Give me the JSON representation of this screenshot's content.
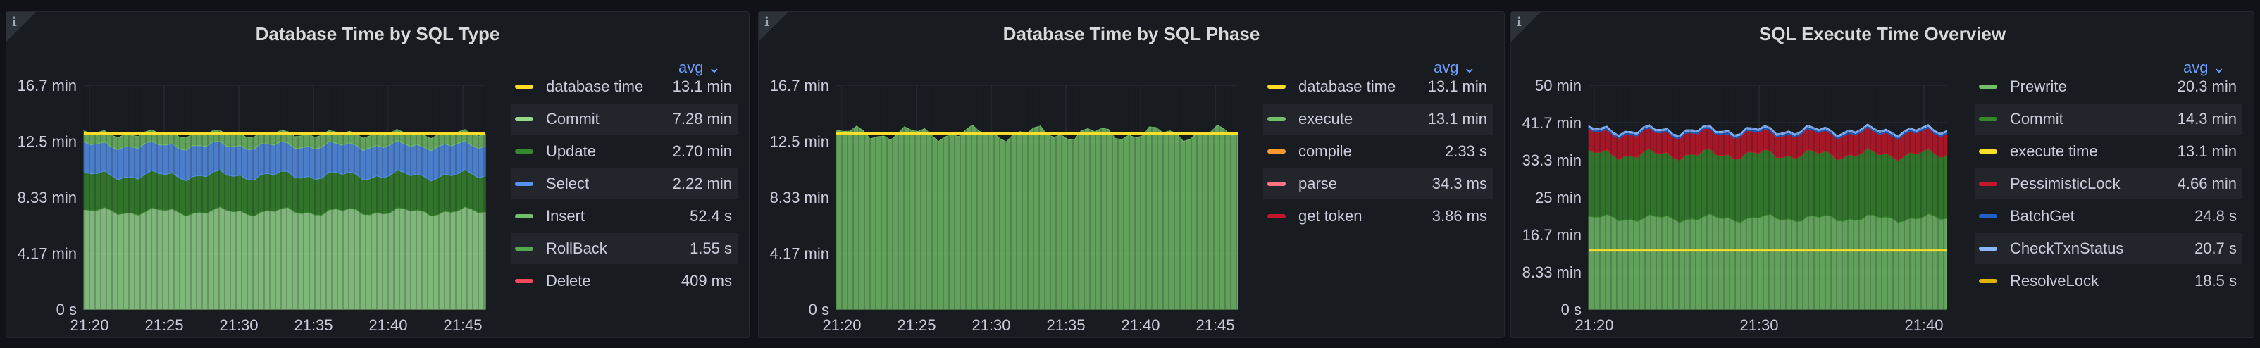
{
  "panels": [
    {
      "title": "Database Time by SQL Type",
      "legend_calc": "avg",
      "legend": [
        {
          "name": "database time",
          "value": "13.1 min",
          "color": "#fade2a"
        },
        {
          "name": "Commit",
          "value": "7.28 min",
          "color": "#96d98d"
        },
        {
          "name": "Update",
          "value": "2.70 min",
          "color": "#37872d"
        },
        {
          "name": "Select",
          "value": "2.22 min",
          "color": "#5794f2"
        },
        {
          "name": "Insert",
          "value": "52.4 s",
          "color": "#73bf69"
        },
        {
          "name": "RollBack",
          "value": "1.55 s",
          "color": "#56a64b"
        },
        {
          "name": "Delete",
          "value": "409 ms",
          "color": "#f2495c"
        }
      ],
      "chart_data": {
        "type": "area",
        "y_ticks": [
          "0 s",
          "4.17 min",
          "8.33 min",
          "12.5 min",
          "16.7 min"
        ],
        "x_ticks": [
          "21:20",
          "21:25",
          "21:30",
          "21:35",
          "21:40",
          "21:45"
        ],
        "ylim_min": [
          0,
          16.7
        ],
        "series": [
          {
            "name": "Commit",
            "avg_min": 7.28,
            "color": "#96d98d"
          },
          {
            "name": "Update",
            "avg_min": 2.7,
            "color": "#37872d"
          },
          {
            "name": "Select",
            "avg_min": 2.22,
            "color": "#5794f2"
          },
          {
            "name": "Insert",
            "avg_min": 0.87,
            "color": "#73bf69"
          },
          {
            "name": "database time",
            "avg_min": 13.1,
            "color": "#fade2a",
            "type": "line"
          }
        ]
      }
    },
    {
      "title": "Database Time by SQL Phase",
      "legend_calc": "avg",
      "legend": [
        {
          "name": "database time",
          "value": "13.1 min",
          "color": "#fade2a"
        },
        {
          "name": "execute",
          "value": "13.1 min",
          "color": "#73bf69"
        },
        {
          "name": "compile",
          "value": "2.33 s",
          "color": "#ff9830"
        },
        {
          "name": "parse",
          "value": "34.3 ms",
          "color": "#ff7383"
        },
        {
          "name": "get token",
          "value": "3.86 ms",
          "color": "#c4162a"
        }
      ],
      "chart_data": {
        "type": "area",
        "y_ticks": [
          "0 s",
          "4.17 min",
          "8.33 min",
          "12.5 min",
          "16.7 min"
        ],
        "x_ticks": [
          "21:20",
          "21:25",
          "21:30",
          "21:35",
          "21:40",
          "21:45"
        ],
        "ylim_min": [
          0,
          16.7
        ],
        "series": [
          {
            "name": "execute",
            "avg_min": 13.1,
            "color": "#73bf69"
          },
          {
            "name": "database time",
            "avg_min": 13.1,
            "color": "#fade2a",
            "type": "line"
          }
        ]
      }
    },
    {
      "title": "SQL Execute Time Overview",
      "legend_calc": "avg",
      "legend": [
        {
          "name": "Prewrite",
          "value": "20.3 min",
          "color": "#73bf69"
        },
        {
          "name": "Commit",
          "value": "14.3 min",
          "color": "#37872d"
        },
        {
          "name": "execute time",
          "value": "13.1 min",
          "color": "#fade2a"
        },
        {
          "name": "PessimisticLock",
          "value": "4.66 min",
          "color": "#c4162a"
        },
        {
          "name": "BatchGet",
          "value": "24.8 s",
          "color": "#1f60c4"
        },
        {
          "name": "CheckTxnStatus",
          "value": "20.7 s",
          "color": "#8ab8ff"
        },
        {
          "name": "ResolveLock",
          "value": "18.5 s",
          "color": "#e0b400"
        }
      ],
      "chart_data": {
        "type": "area",
        "y_ticks": [
          "0 s",
          "8.33 min",
          "16.7 min",
          "25 min",
          "33.3 min",
          "41.7 min",
          "50 min"
        ],
        "x_ticks": [
          "21:20",
          "21:30",
          "21:40"
        ],
        "ylim_min": [
          0,
          50
        ],
        "series": [
          {
            "name": "Prewrite",
            "avg_min": 20.3,
            "color": "#73bf69"
          },
          {
            "name": "Commit",
            "avg_min": 14.3,
            "color": "#37872d"
          },
          {
            "name": "PessimisticLock",
            "avg_min": 4.66,
            "color": "#c4162a"
          },
          {
            "name": "BatchGet",
            "avg_min": 0.41,
            "color": "#1f60c4"
          },
          {
            "name": "CheckTxnStatus",
            "avg_min": 0.35,
            "color": "#8ab8ff"
          },
          {
            "name": "execute time",
            "avg_min": 13.1,
            "color": "#fade2a",
            "type": "line"
          }
        ]
      }
    }
  ]
}
